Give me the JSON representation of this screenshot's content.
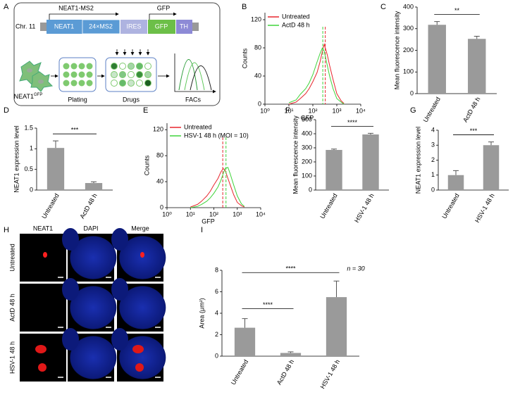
{
  "diagram": {
    "panel": "A",
    "chromosome": "Chr. 11",
    "transcript": "NEAT1-MS2",
    "reporter": "GFP",
    "elements": [
      "NEAT1",
      "24×MS2",
      "IRES",
      "GFP",
      "TH"
    ],
    "cell_line": "NEAT1",
    "cell_line_sup": "GFP",
    "steps": [
      "Plating",
      "Drugs",
      "FACs"
    ]
  },
  "micrographs": {
    "panel": "H",
    "columns": [
      "NEAT1",
      "DAPI",
      "Merge"
    ],
    "rows": [
      "Untreated",
      "ActD 48 h",
      "HSV-1 48 h"
    ]
  },
  "chart_data": [
    {
      "type": "line",
      "panel": "B",
      "xscale": "log",
      "x_label": "GFP",
      "y_label": "Counts",
      "x": [
        10,
        20,
        30,
        50,
        70,
        100,
        150,
        200,
        250,
        300,
        400,
        500,
        700,
        1000,
        1500,
        2000
      ],
      "series": [
        {
          "name": "Untreated",
          "color": "#e8262e",
          "median": 330,
          "values": [
            0,
            3,
            8,
            15,
            22,
            32,
            45,
            60,
            75,
            85,
            70,
            55,
            35,
            15,
            5,
            1
          ]
        },
        {
          "name": "ActD 48 h",
          "color": "#3fd43a",
          "median": 260,
          "values": [
            2,
            6,
            14,
            22,
            30,
            42,
            60,
            72,
            80,
            75,
            55,
            40,
            22,
            8,
            3,
            0
          ]
        }
      ],
      "xlim": [
        1,
        10000
      ],
      "xticks": [
        {
          "value": 1,
          "label": "10⁰"
        },
        {
          "value": 10,
          "label": "10¹"
        },
        {
          "value": 100,
          "label": "10²"
        },
        {
          "value": 1000,
          "label": "10³"
        },
        {
          "value": 10000,
          "label": "10⁴"
        }
      ],
      "ylim": [
        0,
        130
      ],
      "yticks": [
        0,
        40,
        80,
        120
      ]
    },
    {
      "type": "bar",
      "panel": "C",
      "y_label": "Mean fluorescence intensity",
      "categories": [
        "Untreated",
        "ActD 48 h"
      ],
      "values": [
        318,
        253
      ],
      "errors": [
        15,
        12
      ],
      "color": "#9a9a9a",
      "significance": [
        "**"
      ],
      "ylim": [
        0,
        400
      ],
      "yticks": [
        0,
        100,
        200,
        300,
        400
      ]
    },
    {
      "type": "bar",
      "panel": "D",
      "y_label": "NEAT1 expression level",
      "categories": [
        "Untreated",
        "ActD 48 h"
      ],
      "values": [
        1.02,
        0.17
      ],
      "errors": [
        0.17,
        0.03
      ],
      "color": "#9a9a9a",
      "significance": [
        "***"
      ],
      "ylim": [
        0,
        1.5
      ],
      "yticks": [
        0,
        0.5,
        1,
        1.5
      ]
    },
    {
      "type": "line",
      "panel": "E",
      "xscale": "log",
      "x_label": "GFP",
      "y_label": "Counts",
      "x": [
        10,
        20,
        30,
        50,
        70,
        100,
        150,
        200,
        250,
        300,
        400,
        500,
        700,
        1000,
        1500,
        2000
      ],
      "series": [
        {
          "name": "Untreated",
          "color": "#e8262e",
          "median": 240,
          "values": [
            1,
            5,
            10,
            18,
            25,
            35,
            45,
            55,
            60,
            58,
            45,
            35,
            20,
            8,
            3,
            1
          ]
        },
        {
          "name": "HSV-1 48 h (MOI = 10)",
          "color": "#3fd43a",
          "median": 330,
          "values": [
            0,
            2,
            5,
            10,
            15,
            22,
            32,
            42,
            52,
            60,
            62,
            52,
            35,
            18,
            6,
            2
          ]
        }
      ],
      "xlim": [
        1,
        10000
      ],
      "xticks": [
        {
          "value": 1,
          "label": "10⁰"
        },
        {
          "value": 10,
          "label": "10¹"
        },
        {
          "value": 100,
          "label": "10²"
        },
        {
          "value": 1000,
          "label": "10³"
        },
        {
          "value": 10000,
          "label": "10⁴"
        }
      ],
      "ylim": [
        0,
        130
      ],
      "yticks": [
        0,
        40,
        80,
        120
      ]
    },
    {
      "type": "bar",
      "panel": "F",
      "y_label": "Mean fluorescence intensity",
      "categories": [
        "Untreated",
        "HSV-1 48 h"
      ],
      "values": [
        285,
        395
      ],
      "errors": [
        6,
        8
      ],
      "color": "#9a9a9a",
      "significance": [
        "****"
      ],
      "ylim": [
        0,
        500
      ],
      "yticks": [
        0,
        100,
        200,
        300,
        400,
        500
      ]
    },
    {
      "type": "bar",
      "panel": "G",
      "y_label": "NEAT1 expression level",
      "categories": [
        "Untreated",
        "HSV-1 48 h"
      ],
      "values": [
        1.0,
        3.0
      ],
      "errors": [
        0.3,
        0.22
      ],
      "color": "#9a9a9a",
      "significance": [
        "***"
      ],
      "ylim": [
        0,
        4
      ],
      "yticks": [
        0,
        1,
        2,
        3,
        4
      ]
    },
    {
      "type": "bar",
      "panel": "I",
      "y_label": "Area (μm²)",
      "categories": [
        "Untreated",
        "ActD 48 h",
        "HSV-1 48 h"
      ],
      "values": [
        2.65,
        0.3,
        5.5
      ],
      "errors": [
        0.85,
        0.1,
        1.5
      ],
      "color": "#9a9a9a",
      "significance": [
        "****",
        "****"
      ],
      "annotation": "n = 30",
      "ylim": [
        0,
        8
      ],
      "yticks": [
        0,
        2,
        4,
        6,
        8
      ]
    }
  ]
}
